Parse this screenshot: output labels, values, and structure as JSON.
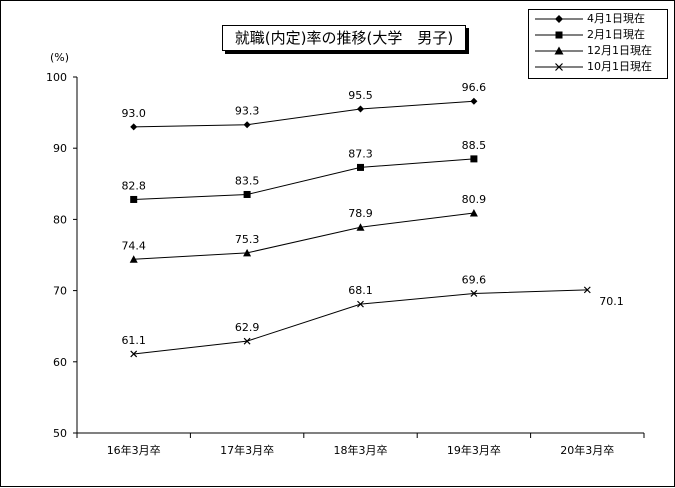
{
  "chart_data": {
    "type": "line",
    "title": "就職(内定)率の推移(大学　男子)",
    "ylabel_unit": "(%)",
    "ylim": [
      50,
      100
    ],
    "yticks": [
      50,
      60,
      70,
      80,
      90,
      100
    ],
    "categories": [
      "16年3月卒",
      "17年3月卒",
      "18年3月卒",
      "19年3月卒",
      "20年3月卒"
    ],
    "grid": false,
    "legend_position": "top-right",
    "series": [
      {
        "name": "4月1日現在",
        "marker": "diamond",
        "values": [
          93.0,
          93.3,
          95.5,
          96.6,
          null
        ],
        "labels": [
          "93.0",
          "93.3",
          "95.5",
          "96.6",
          null
        ]
      },
      {
        "name": "2月1日現在",
        "marker": "square",
        "values": [
          82.8,
          83.5,
          87.3,
          88.5,
          null
        ],
        "labels": [
          "82.8",
          "83.5",
          "87.3",
          "88.5",
          null
        ]
      },
      {
        "name": "12月1日現在",
        "marker": "triangle",
        "values": [
          74.4,
          75.3,
          78.9,
          80.9,
          null
        ],
        "labels": [
          "74.4",
          "75.3",
          "78.9",
          "80.9",
          null
        ]
      },
      {
        "name": "10月1日現在",
        "marker": "cross",
        "values": [
          61.1,
          62.9,
          68.1,
          69.6,
          70.1
        ],
        "labels": [
          "61.1",
          "62.9",
          "68.1",
          "69.6",
          "70.1"
        ]
      }
    ],
    "colors": {
      "line": "#000000",
      "background": "#ffffff"
    }
  }
}
